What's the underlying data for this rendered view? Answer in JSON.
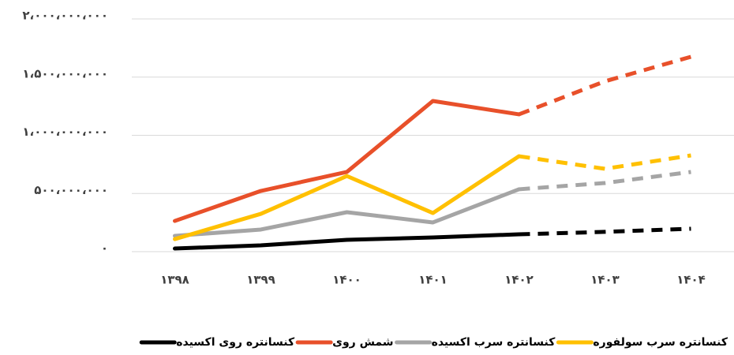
{
  "chart_data": {
    "type": "line",
    "categories": [
      "۱۳۹۸",
      "۱۳۹۹",
      "۱۴۰۰",
      "۱۴۰۱",
      "۱۴۰۲",
      "۱۴۰۳",
      "۱۴۰۴"
    ],
    "series": [
      {
        "name": "کنسانتره روی اکسیده",
        "color": "#000000",
        "values": [
          27000000,
          54000000,
          102000000,
          122000000,
          149000000,
          170000000,
          197000000
        ]
      },
      {
        "name": "شمش روی",
        "color": "#e8502a",
        "values": [
          264000000,
          522000000,
          685000000,
          1295000000,
          1180000000,
          1464000000,
          1675000000
        ]
      },
      {
        "name": "کنسانتره سرب اکسیده",
        "color": "#a5a5a5",
        "values": [
          136000000,
          190000000,
          339000000,
          251000000,
          536000000,
          590000000,
          685000000
        ]
      },
      {
        "name": "کنسانتره سرب سولفوره",
        "color": "#ffc000",
        "values": [
          108000000,
          325000000,
          650000000,
          332000000,
          820000000,
          712000000,
          827000000
        ]
      }
    ],
    "dashed_from_index": 4,
    "ylim": [
      0,
      2000000000
    ],
    "yticks": [
      {
        "value": 0,
        "label": "۰"
      },
      {
        "value": 500000000,
        "label": "۵۰۰،۰۰۰،۰۰۰"
      },
      {
        "value": 1000000000,
        "label": "۱،۰۰۰،۰۰۰،۰۰۰"
      },
      {
        "value": 1500000000,
        "label": "۱،۵۰۰،۰۰۰،۰۰۰"
      },
      {
        "value": 2000000000,
        "label": "۲،۰۰۰،۰۰۰،۰۰۰"
      }
    ],
    "grid": true,
    "legend": "bottom"
  }
}
